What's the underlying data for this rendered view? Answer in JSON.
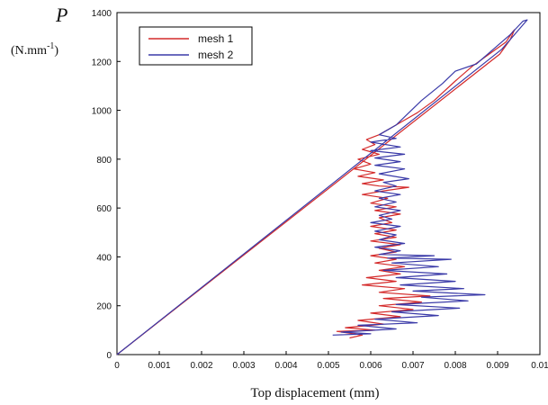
{
  "chart_data": {
    "type": "line",
    "title": "",
    "ylabel_symbol": "P",
    "ylabel_unit": "(N.mm-1)",
    "xlabel": "Top displacement (mm)",
    "xlim": [
      0,
      0.01
    ],
    "ylim": [
      0,
      1400
    ],
    "x_ticks": [
      "0",
      "0.001",
      "0.002",
      "0.003",
      "0.004",
      "0.005",
      "0.006",
      "0.007",
      "0.008",
      "0.009",
      "0.01"
    ],
    "y_ticks": [
      "0",
      "200",
      "400",
      "600",
      "800",
      "1000",
      "1200",
      "1400"
    ],
    "legend_position": "top-left",
    "grid": false,
    "series": [
      {
        "name": "mesh 1",
        "color": "#d42a2a",
        "points": [
          [
            0.0,
            0
          ],
          [
            0.00905,
            1230
          ],
          [
            0.0093,
            1290
          ],
          [
            0.0094,
            1330
          ],
          [
            0.00935,
            1320
          ],
          [
            0.0092,
            1280
          ],
          [
            0.0088,
            1230
          ],
          [
            0.0084,
            1180
          ],
          [
            0.008,
            1120
          ],
          [
            0.0075,
            1040
          ],
          [
            0.0071,
            990
          ],
          [
            0.0067,
            950
          ],
          [
            0.00645,
            925
          ],
          [
            0.0062,
            900
          ],
          [
            0.0059,
            880
          ],
          [
            0.0061,
            860
          ],
          [
            0.0058,
            840
          ],
          [
            0.0062,
            820
          ],
          [
            0.0057,
            800
          ],
          [
            0.006,
            780
          ],
          [
            0.0056,
            760
          ],
          [
            0.0061,
            745
          ],
          [
            0.0057,
            730
          ],
          [
            0.0063,
            715
          ],
          [
            0.0058,
            700
          ],
          [
            0.0062,
            690
          ],
          [
            0.0069,
            685
          ],
          [
            0.0063,
            670
          ],
          [
            0.0058,
            655
          ],
          [
            0.0064,
            640
          ],
          [
            0.006,
            620
          ],
          [
            0.0066,
            605
          ],
          [
            0.0061,
            590
          ],
          [
            0.0067,
            575
          ],
          [
            0.0062,
            560
          ],
          [
            0.0065,
            540
          ],
          [
            0.006,
            525
          ],
          [
            0.0066,
            510
          ],
          [
            0.0061,
            495
          ],
          [
            0.0066,
            480
          ],
          [
            0.006,
            465
          ],
          [
            0.0067,
            450
          ],
          [
            0.0062,
            435
          ],
          [
            0.0066,
            420
          ],
          [
            0.006,
            405
          ],
          [
            0.0066,
            390
          ],
          [
            0.0061,
            375
          ],
          [
            0.0068,
            360
          ],
          [
            0.0062,
            345
          ],
          [
            0.0067,
            330
          ],
          [
            0.0059,
            315
          ],
          [
            0.0066,
            300
          ],
          [
            0.0058,
            285
          ],
          [
            0.0068,
            270
          ],
          [
            0.0062,
            255
          ],
          [
            0.0074,
            240
          ],
          [
            0.0063,
            230
          ],
          [
            0.0072,
            215
          ],
          [
            0.0062,
            200
          ],
          [
            0.007,
            185
          ],
          [
            0.006,
            170
          ],
          [
            0.0067,
            155
          ],
          [
            0.0057,
            140
          ],
          [
            0.0063,
            125
          ],
          [
            0.0054,
            110
          ],
          [
            0.0061,
            100
          ],
          [
            0.0052,
            95
          ],
          [
            0.0058,
            80
          ],
          [
            0.0055,
            68
          ]
        ]
      },
      {
        "name": "mesh 2",
        "color": "#3a3aa8",
        "points": [
          [
            0.0,
            0
          ],
          [
            0.0091,
            1250
          ],
          [
            0.0095,
            1330
          ],
          [
            0.0097,
            1370
          ],
          [
            0.0096,
            1365
          ],
          [
            0.0093,
            1310
          ],
          [
            0.0089,
            1250
          ],
          [
            0.0085,
            1190
          ],
          [
            0.008,
            1160
          ],
          [
            0.0077,
            1110
          ],
          [
            0.0072,
            1040
          ],
          [
            0.0069,
            990
          ],
          [
            0.0066,
            940
          ],
          [
            0.0064,
            920
          ],
          [
            0.0062,
            900
          ],
          [
            0.0066,
            885
          ],
          [
            0.006,
            870
          ],
          [
            0.0067,
            850
          ],
          [
            0.006,
            835
          ],
          [
            0.0068,
            820
          ],
          [
            0.0061,
            805
          ],
          [
            0.0067,
            790
          ],
          [
            0.0061,
            775
          ],
          [
            0.0068,
            760
          ],
          [
            0.0062,
            740
          ],
          [
            0.0069,
            720
          ],
          [
            0.0063,
            705
          ],
          [
            0.0066,
            690
          ],
          [
            0.0061,
            670
          ],
          [
            0.0067,
            655
          ],
          [
            0.0062,
            640
          ],
          [
            0.0066,
            625
          ],
          [
            0.0061,
            605
          ],
          [
            0.0067,
            590
          ],
          [
            0.0062,
            570
          ],
          [
            0.0065,
            555
          ],
          [
            0.006,
            540
          ],
          [
            0.0067,
            525
          ],
          [
            0.0061,
            505
          ],
          [
            0.0066,
            490
          ],
          [
            0.0062,
            470
          ],
          [
            0.0068,
            455
          ],
          [
            0.0061,
            440
          ],
          [
            0.0067,
            425
          ],
          [
            0.0062,
            410
          ],
          [
            0.0075,
            405
          ],
          [
            0.0064,
            395
          ],
          [
            0.0079,
            390
          ],
          [
            0.0065,
            375
          ],
          [
            0.0076,
            360
          ],
          [
            0.0063,
            345
          ],
          [
            0.0078,
            330
          ],
          [
            0.0066,
            315
          ],
          [
            0.008,
            300
          ],
          [
            0.0067,
            285
          ],
          [
            0.0082,
            270
          ],
          [
            0.007,
            260
          ],
          [
            0.0087,
            245
          ],
          [
            0.0072,
            235
          ],
          [
            0.0083,
            220
          ],
          [
            0.0066,
            205
          ],
          [
            0.0081,
            190
          ],
          [
            0.0065,
            175
          ],
          [
            0.0076,
            160
          ],
          [
            0.0061,
            145
          ],
          [
            0.0071,
            130
          ],
          [
            0.0057,
            120
          ],
          [
            0.0066,
            105
          ],
          [
            0.0053,
            92
          ],
          [
            0.006,
            85
          ],
          [
            0.0051,
            80
          ]
        ]
      }
    ]
  }
}
